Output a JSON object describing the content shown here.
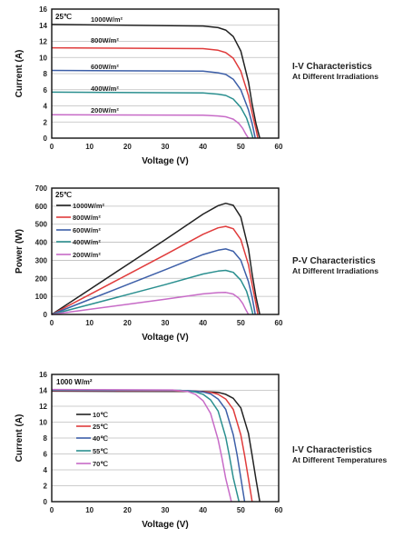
{
  "chart_data": [
    {
      "type": "line",
      "title": "I-V Characteristics",
      "subtitle": "At Different Irradiations",
      "xlabel": "Voltage  (V)",
      "ylabel": "Current (A)",
      "xlim": [
        0,
        60
      ],
      "ylim": [
        0,
        16
      ],
      "xticks": [
        "0",
        "10",
        "20",
        "30",
        "40",
        "50",
        "60"
      ],
      "yticks": [
        "0",
        "2",
        "4",
        "6",
        "8",
        "10",
        "12",
        "14",
        "16"
      ],
      "grid": true,
      "annotation": "25℃",
      "series": [
        {
          "name": "1000W/m²",
          "color": "#222222",
          "x": [
            0,
            40,
            44,
            46,
            48,
            50,
            52,
            53,
            54,
            55
          ],
          "y": [
            14.1,
            13.9,
            13.7,
            13.4,
            12.6,
            10.8,
            7.0,
            4.2,
            1.8,
            0
          ]
        },
        {
          "name": "800W/m²",
          "color": "#e03c3c",
          "x": [
            0,
            40,
            44,
            46,
            48,
            50,
            52,
            53,
            54,
            54.5
          ],
          "y": [
            11.2,
            11.1,
            10.9,
            10.6,
            9.9,
            8.3,
            5.3,
            3.1,
            1.1,
            0
          ]
        },
        {
          "name": "600W/m²",
          "color": "#3d5fa8",
          "x": [
            0,
            40,
            44,
            46,
            48,
            50,
            52,
            53,
            53.8
          ],
          "y": [
            8.4,
            8.3,
            8.1,
            7.9,
            7.3,
            6.0,
            3.5,
            1.8,
            0
          ]
        },
        {
          "name": "400W/m²",
          "color": "#2a8f8f",
          "x": [
            0,
            40,
            44,
            46,
            48,
            50,
            51.5,
            52.5,
            53.2
          ],
          "y": [
            5.7,
            5.6,
            5.45,
            5.3,
            4.85,
            3.8,
            2.5,
            1.1,
            0
          ]
        },
        {
          "name": "200W/m²",
          "color": "#c76bc7",
          "x": [
            0,
            40,
            44,
            46,
            48,
            49.5,
            50.5,
            51.3,
            52
          ],
          "y": [
            2.9,
            2.85,
            2.75,
            2.65,
            2.35,
            1.8,
            1.2,
            0.5,
            0
          ]
        }
      ]
    },
    {
      "type": "line",
      "title": "P-V Characteristics",
      "subtitle": "At Different Irradiations",
      "xlabel": "Voltage  (V)",
      "ylabel": "Power (W)",
      "xlim": [
        0,
        60
      ],
      "ylim": [
        0,
        700
      ],
      "xticks": [
        "0",
        "10",
        "20",
        "30",
        "40",
        "50",
        "60"
      ],
      "yticks": [
        "0",
        "100",
        "200",
        "300",
        "400",
        "500",
        "600",
        "700"
      ],
      "grid": true,
      "annotation": "25℃",
      "series": [
        {
          "name": "1000W/m²",
          "color": "#222222",
          "x": [
            0,
            10,
            20,
            30,
            40,
            44,
            46,
            48,
            50,
            52,
            53,
            54,
            55
          ],
          "y": [
            0,
            138,
            276,
            414,
            556,
            603,
            616,
            605,
            540,
            364,
            223,
            97,
            0
          ]
        },
        {
          "name": "800W/m²",
          "color": "#e03c3c",
          "x": [
            0,
            10,
            20,
            30,
            40,
            44,
            46,
            48,
            50,
            52,
            53,
            54,
            54.5
          ],
          "y": [
            0,
            110,
            220,
            331,
            444,
            480,
            488,
            475,
            415,
            276,
            164,
            59,
            0
          ]
        },
        {
          "name": "600W/m²",
          "color": "#3d5fa8",
          "x": [
            0,
            10,
            20,
            30,
            40,
            44,
            46,
            48,
            50,
            52,
            53,
            53.8
          ],
          "y": [
            0,
            83,
            165,
            248,
            332,
            356,
            363,
            350,
            300,
            182,
            95,
            0
          ]
        },
        {
          "name": "400W/m²",
          "color": "#2a8f8f",
          "x": [
            0,
            10,
            20,
            30,
            40,
            44,
            46,
            48,
            50,
            51.5,
            52.5,
            53.2
          ],
          "y": [
            0,
            55,
            110,
            165,
            224,
            240,
            244,
            233,
            190,
            129,
            58,
            0
          ]
        },
        {
          "name": "200W/m²",
          "color": "#c76bc7",
          "x": [
            0,
            10,
            20,
            30,
            40,
            44,
            46,
            48,
            49.5,
            50.5,
            51.3,
            52
          ],
          "y": [
            0,
            28,
            56,
            84,
            114,
            121,
            122,
            113,
            89,
            61,
            26,
            0
          ]
        }
      ]
    },
    {
      "type": "line",
      "title": "I-V Characteristics",
      "subtitle": "At Different Temperatures",
      "xlabel": "Voltage  (V)",
      "ylabel": "Current (A)",
      "xlim": [
        0,
        60
      ],
      "ylim": [
        0,
        16
      ],
      "xticks": [
        "0",
        "10",
        "20",
        "30",
        "40",
        "50",
        "60"
      ],
      "yticks": [
        "0",
        "2",
        "4",
        "6",
        "8",
        "10",
        "12",
        "14",
        "16"
      ],
      "grid": true,
      "annotation": "1000 W/m²",
      "series": [
        {
          "name": "10℃",
          "color": "#222222",
          "x": [
            0,
            40,
            44,
            46,
            48,
            50,
            52,
            53,
            54,
            55
          ],
          "y": [
            13.9,
            13.85,
            13.75,
            13.5,
            13.0,
            11.8,
            8.6,
            5.8,
            2.8,
            0
          ]
        },
        {
          "name": "25℃",
          "color": "#e03c3c",
          "x": [
            0,
            38,
            42,
            44,
            46,
            48,
            50,
            51,
            52,
            53
          ],
          "y": [
            13.95,
            13.9,
            13.75,
            13.5,
            12.9,
            11.6,
            8.4,
            5.8,
            2.9,
            0
          ]
        },
        {
          "name": "40℃",
          "color": "#3d5fa8",
          "x": [
            0,
            36,
            40,
            42,
            44,
            46,
            48,
            49,
            50,
            51
          ],
          "y": [
            14.0,
            13.95,
            13.8,
            13.55,
            12.9,
            11.6,
            8.4,
            5.9,
            3.0,
            0
          ]
        },
        {
          "name": "55℃",
          "color": "#2a8f8f",
          "x": [
            0,
            34,
            38,
            40,
            42,
            44,
            46,
            47,
            48,
            49.5
          ],
          "y": [
            14.05,
            14.0,
            13.8,
            13.5,
            12.8,
            11.4,
            8.1,
            5.7,
            3.0,
            0
          ]
        },
        {
          "name": "70℃",
          "color": "#c76bc7",
          "x": [
            0,
            32,
            36,
            38,
            40,
            42,
            44,
            45,
            46,
            47.5
          ],
          "y": [
            14.1,
            14.05,
            13.85,
            13.5,
            12.7,
            11.1,
            7.8,
            5.5,
            2.9,
            0
          ]
        }
      ]
    }
  ]
}
